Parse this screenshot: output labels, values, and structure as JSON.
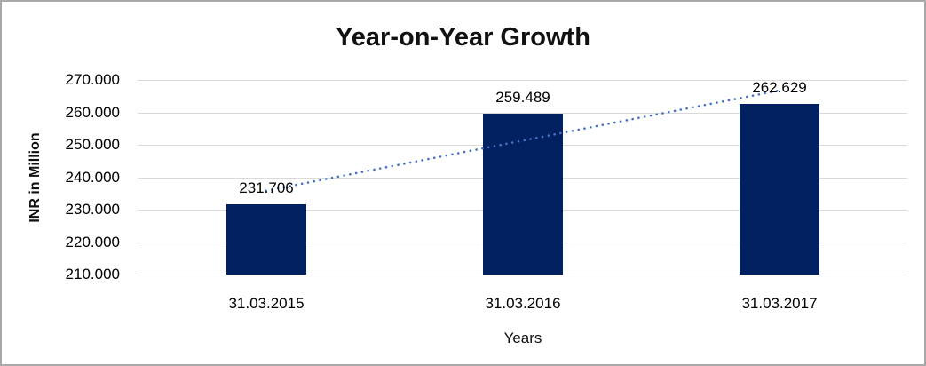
{
  "chart_data": {
    "type": "bar",
    "title": "Year-on-Year Growth",
    "xlabel": "Years",
    "ylabel": "INR in Million",
    "categories": [
      "31.03.2015",
      "31.03.2016",
      "31.03.2017"
    ],
    "values": [
      231.706,
      259.489,
      262.629
    ],
    "data_labels": [
      "231.706",
      "259.489",
      "262.629"
    ],
    "ylim": [
      210,
      270
    ],
    "ytick_step": 10,
    "ytick_labels": [
      "210.000",
      "220.000",
      "230.000",
      "240.000",
      "250.000",
      "260.000",
      "270.000"
    ],
    "grid": true,
    "legend": "none",
    "bar_color": "#002060",
    "trendline": {
      "type": "linear",
      "style": "dotted",
      "color": "#4472c4"
    },
    "gridline_color": "#d9d9d9",
    "border_color": "#a9a9a9"
  }
}
